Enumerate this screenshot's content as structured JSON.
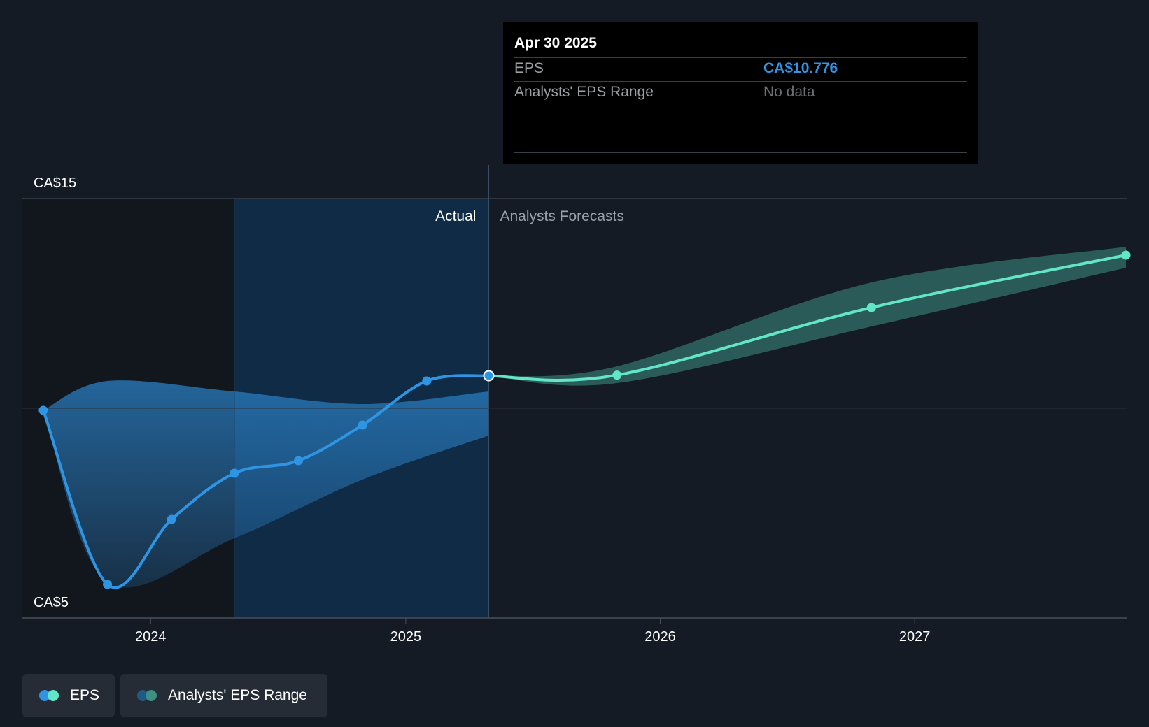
{
  "tooltip": {
    "date": "Apr 30 2025",
    "rows": [
      {
        "label": "EPS",
        "value": "CA$10.776"
      },
      {
        "label": "Analysts' EPS Range",
        "value": "No data"
      }
    ]
  },
  "sections": {
    "actual": "Actual",
    "forecast": "Analysts Forecasts"
  },
  "legend": [
    {
      "label": "EPS",
      "colors": [
        "#2d95e3",
        "#63e6c8"
      ]
    },
    {
      "label": "Analysts' EPS Range",
      "colors": [
        "#1f5a86",
        "#3e8f84"
      ]
    }
  ],
  "colors": {
    "eps_actual": "#2d95e3",
    "eps_forecast": "#63e6c8",
    "range_actual": "#2a7fc4",
    "range_forecast": "#3e8f84",
    "highlight": "#102b45"
  },
  "chart_data": {
    "type": "line",
    "y_tick_labels": [
      "CA$15",
      "CA$5"
    ],
    "y_ticks": [
      15,
      5
    ],
    "ylim": [
      5,
      15
    ],
    "x_tick_labels": [
      "2024",
      "2025",
      "2026",
      "2027"
    ],
    "x_ticks": [
      "2024-01-01",
      "2025-01-01",
      "2026-01-01",
      "2027-01-01"
    ],
    "xlim": [
      "2023-07-01",
      "2027-11-01"
    ],
    "divider_date": "2025-04-30",
    "highlight_start": "2024-04-30",
    "series": [
      {
        "name": "EPS",
        "segment": "actual",
        "x": [
          "2023-07-31",
          "2023-10-31",
          "2024-01-31",
          "2024-04-30",
          "2024-07-31",
          "2024-10-31",
          "2025-01-31",
          "2025-04-30"
        ],
        "y": [
          9.95,
          5.8,
          7.35,
          8.45,
          8.75,
          9.6,
          10.65,
          10.776
        ]
      },
      {
        "name": "EPS",
        "segment": "forecast",
        "x": [
          "2025-04-30",
          "2025-10-31",
          "2026-10-31",
          "2027-10-31"
        ],
        "y": [
          10.776,
          10.79,
          12.4,
          13.65
        ]
      }
    ],
    "range_actual": {
      "x": [
        "2023-07-31",
        "2023-10-31",
        "2024-04-30",
        "2024-10-31",
        "2025-04-30"
      ],
      "upper": [
        9.95,
        10.65,
        10.4,
        10.1,
        10.4
      ],
      "lower": [
        9.95,
        5.85,
        6.9,
        8.3,
        9.35
      ]
    },
    "range_forecast": {
      "x": [
        "2025-04-30",
        "2025-10-31",
        "2026-10-31",
        "2027-10-31"
      ],
      "upper": [
        10.776,
        11.0,
        13.0,
        13.85
      ],
      "lower": [
        10.776,
        10.6,
        11.95,
        13.35
      ]
    },
    "grid": true
  }
}
